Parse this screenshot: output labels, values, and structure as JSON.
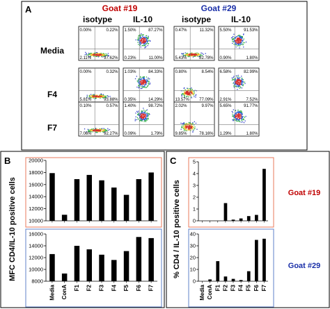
{
  "panels": {
    "a": "A",
    "b": "B",
    "c": "C"
  },
  "colors": {
    "goat19": "#c00000",
    "goat29": "#1a2fa8",
    "red_box": "#e8795b",
    "blue_box": "#5f82c9",
    "bar": "#000000"
  },
  "flow": {
    "goat_labels": [
      "Goat #19",
      "Goat #29"
    ],
    "col_headers": [
      "isotype",
      "IL-10",
      "isotype",
      "IL-10"
    ],
    "row_labels": [
      "Media",
      "F4",
      "F7"
    ],
    "quadrants": [
      [
        [
          "0.00%",
          "0.22%",
          "2.11%",
          "97.62%"
        ],
        [
          "1.50%",
          "87.27%",
          "0.23%",
          "11.00%"
        ],
        [
          "0.47%",
          "11.32%",
          "5.43%",
          "82.78%"
        ],
        [
          "5.50%",
          "91.53%",
          "0.90%",
          "1.80%"
        ]
      ],
      [
        [
          "0.00%",
          "0.32%",
          "5.81%",
          "93.88%"
        ],
        [
          "1.03%",
          "84.33%",
          "0.35%",
          "14.29%"
        ],
        [
          "0.80%",
          "8.54%",
          "13.57%",
          "77.09%"
        ],
        [
          "6.58%",
          "82.99%",
          "2.91%",
          "7.52%"
        ]
      ],
      [
        [
          "0.10%",
          "0.57%",
          "7.06%",
          "92.27%"
        ],
        [
          "1.40%",
          "98.72%",
          "0.09%",
          "1.79%"
        ],
        [
          "2.02%",
          "9.97%",
          "9.85%",
          "78.16%"
        ],
        [
          "5.65%",
          "91.77%",
          "1.29%",
          "1.80%"
        ]
      ]
    ]
  },
  "chart_data": [
    {
      "type": "bar",
      "panel": "B",
      "subplot": "top",
      "categories": [
        "Media",
        "ConA",
        "F1",
        "F2",
        "F3",
        "F4",
        "F5",
        "F6",
        "F7"
      ],
      "values": [
        17900,
        11000,
        16900,
        17600,
        16700,
        15500,
        14300,
        16900,
        18000
      ],
      "ylim": [
        10000,
        20000
      ],
      "yticks": [
        10000,
        12000,
        14000,
        16000,
        18000,
        20000
      ],
      "ylabel": "MFC CD4/IL-10 positive cells"
    },
    {
      "type": "bar",
      "panel": "B",
      "subplot": "bottom",
      "categories": [
        "Media",
        "ConA",
        "F1",
        "F2",
        "F3",
        "F4",
        "F5",
        "F6",
        "F7"
      ],
      "values": [
        12600,
        9300,
        14000,
        13400,
        12500,
        11600,
        13100,
        15500,
        15300
      ],
      "ylim": [
        8000,
        16000
      ],
      "yticks": [
        8000,
        10000,
        12000,
        14000,
        16000
      ]
    },
    {
      "type": "bar",
      "panel": "C",
      "subplot": "top",
      "categories": [
        "Media",
        "ConA",
        "F1",
        "F2",
        "F3",
        "F4",
        "F5",
        "F6",
        "F7"
      ],
      "values": [
        0,
        0,
        0,
        1.5,
        0.1,
        0.2,
        0.4,
        0.5,
        4.4
      ],
      "ylim": [
        0,
        5
      ],
      "yticks": [
        0,
        1,
        2,
        3,
        4,
        5
      ],
      "ylabel": "% CD4 / IL-10 positive cells",
      "legend": "Goat #19"
    },
    {
      "type": "bar",
      "panel": "C",
      "subplot": "bottom",
      "categories": [
        "Media",
        "ConA",
        "F1",
        "F2",
        "F3",
        "F4",
        "F5",
        "F6",
        "F7"
      ],
      "values": [
        0,
        1.5,
        17,
        4,
        2,
        1,
        8.5,
        35,
        36
      ],
      "ylim": [
        0,
        40
      ],
      "yticks": [
        0,
        10,
        20,
        30,
        40
      ],
      "legend": "Goat #29"
    }
  ]
}
